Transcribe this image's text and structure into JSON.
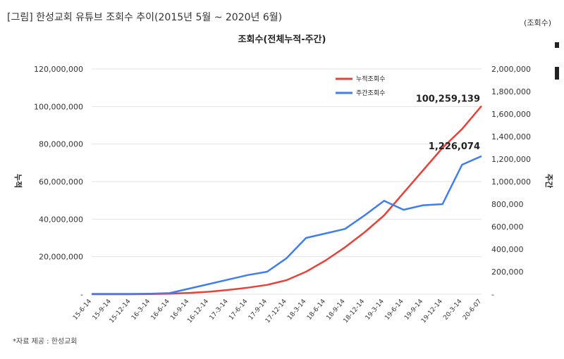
{
  "header": {
    "caption": "[그림] 한성교회 유튜브 조회수 추이(2015년 5월 ~ 2020년 6월)",
    "unit": "(조회수)"
  },
  "footer": {
    "source": "*자료 제공 : 한성교회"
  },
  "colors": {
    "cumulative": "#e8413a",
    "weekly": "#3f7ef0",
    "grid": "#e3e3e3"
  },
  "chart_data": {
    "type": "line",
    "title": "조회수(전체누적-주간)",
    "ylabel_left": "누적",
    "ylabel_right": "주간",
    "ylim_left": [
      0,
      120000000
    ],
    "ylim_right": [
      0,
      2000000
    ],
    "yticks_left": [
      "-",
      "20,000,000",
      "40,000,000",
      "60,000,000",
      "80,000,000",
      "100,000,000",
      "120,000,000"
    ],
    "yticks_right": [
      "-",
      "200,000",
      "400,000",
      "600,000",
      "800,000",
      "1,000,000",
      "1,200,000",
      "1,400,000",
      "1,600,000",
      "1,800,000",
      "2,000,000"
    ],
    "x_ticks": [
      "15-6-14",
      "15-9-14",
      "15-12-14",
      "16-3-14",
      "16-6-14",
      "16-9-14",
      "16-12-14",
      "17-3-14",
      "17-6-14",
      "17-9-14",
      "17-12-14",
      "18-3-14",
      "18-6-14",
      "18-9-14",
      "18-12-14",
      "19-3-14",
      "19-6-14",
      "19-9-14",
      "19-12-14",
      "20-3-14",
      "20-6-07"
    ],
    "legend": {
      "position": "top-center",
      "entries": [
        "누적조회수",
        "주간조회수"
      ]
    },
    "series": [
      {
        "name": "누적조회수",
        "axis": "left",
        "values": [
          0,
          0,
          0,
          100000,
          300000,
          700000,
          1300000,
          2300000,
          3500000,
          5000000,
          7500000,
          12000000,
          18000000,
          25000000,
          33000000,
          42000000,
          54000000,
          66000000,
          78000000,
          88000000,
          100259139
        ]
      },
      {
        "name": "주간조회수",
        "axis": "right",
        "values": [
          3000,
          3000,
          3000,
          5000,
          10000,
          50000,
          90000,
          130000,
          170000,
          200000,
          320000,
          500000,
          540000,
          580000,
          700000,
          830000,
          750000,
          790000,
          800000,
          1150000,
          1226074
        ]
      }
    ],
    "annotations": [
      {
        "text": "100,259,139",
        "series": "누적조회수",
        "x": "20-6-07"
      },
      {
        "text": "1,226,074",
        "series": "주간조회수",
        "x": "20-6-07"
      }
    ]
  }
}
